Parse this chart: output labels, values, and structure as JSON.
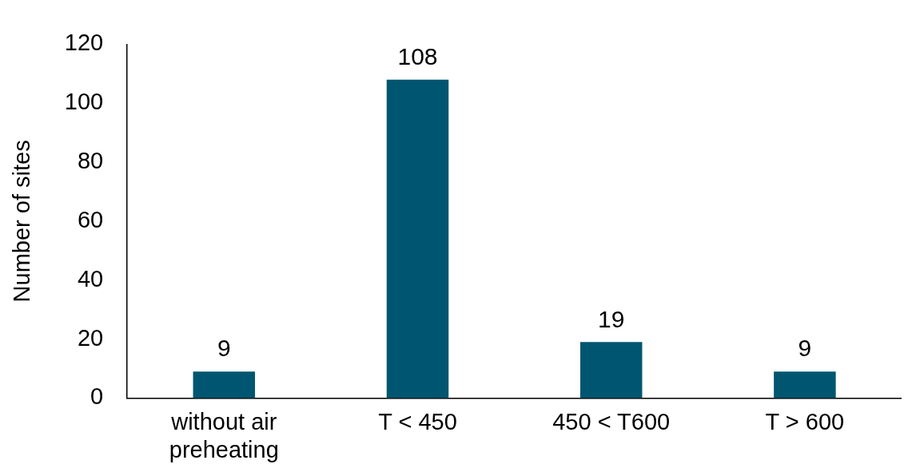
{
  "chart_data": {
    "type": "bar",
    "ylabel": "Number of sites",
    "categories": [
      "without air preheating",
      "T < 450",
      "450 < T600",
      "T > 600"
    ],
    "values": [
      9,
      108,
      19,
      9
    ],
    "color": "#005670",
    "ylim": [
      0,
      120
    ],
    "yticks": [
      0,
      20,
      40,
      60,
      80,
      100,
      120
    ],
    "grid": false,
    "legend": false,
    "data_labels": true
  }
}
